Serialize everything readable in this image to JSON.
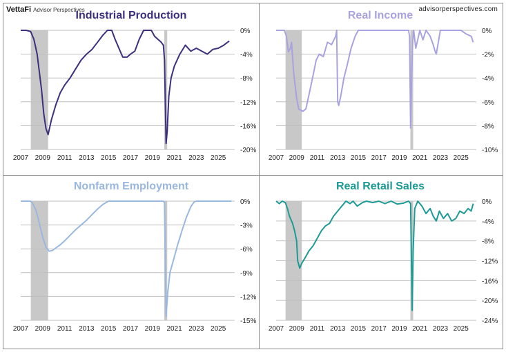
{
  "header": {
    "brand": "VettaFi",
    "brand_sub": "Advisor Perspectives",
    "site": "advisorperspectives.com"
  },
  "colors": {
    "grid": "#bfbfbf",
    "recession": "#c8c8c8",
    "border": "#8c8c8c"
  },
  "chart_data": [
    {
      "type": "line",
      "title": "Industrial Production",
      "color": "#3b2f7e",
      "x_ticks": [
        "2007",
        "2009",
        "2011",
        "2013",
        "2015",
        "2017",
        "2019",
        "2021",
        "2023",
        "2025"
      ],
      "xlim": [
        2007,
        2026.5
      ],
      "ylim": [
        -20,
        0
      ],
      "y_ticks": [
        "0%",
        "-4%",
        "-8%",
        "-12%",
        "-16%",
        "-20%"
      ],
      "recessions": [
        [
          2007.92,
          2009.5
        ],
        [
          2020.08,
          2020.35
        ]
      ],
      "series": [
        {
          "x": [
            2007.0,
            2007.5,
            2007.9,
            2008.2,
            2008.5,
            2008.7,
            2008.9,
            2009.1,
            2009.3,
            2009.5,
            2009.8,
            2010.2,
            2010.6,
            2011.0,
            2011.5,
            2012.0,
            2012.5,
            2013.0,
            2013.5,
            2014.0,
            2014.5,
            2014.9,
            2015.3,
            2015.6,
            2015.9,
            2016.3,
            2016.7,
            2017.0,
            2017.4,
            2017.8,
            2018.2,
            2018.6,
            2018.9,
            2019.2,
            2019.5,
            2019.8,
            2020.0,
            2020.1,
            2020.25,
            2020.35,
            2020.5,
            2020.7,
            2021.0,
            2021.5,
            2022.0,
            2022.5,
            2023.0,
            2023.5,
            2024.0,
            2024.5,
            2025.0,
            2025.5,
            2026.0
          ],
          "y": [
            0,
            0,
            -0.2,
            -1.5,
            -4,
            -7,
            -10,
            -14,
            -16.5,
            -17.5,
            -15,
            -12.5,
            -10.5,
            -9.2,
            -8,
            -6.5,
            -5,
            -4,
            -3.2,
            -2,
            -0.8,
            0,
            0,
            -1.5,
            -2.8,
            -4.5,
            -4.5,
            -4,
            -3.5,
            -1.5,
            0,
            0,
            0,
            -1,
            -1.5,
            -2,
            -2.5,
            -5,
            -19,
            -17,
            -11,
            -8,
            -6,
            -4,
            -2.5,
            -3.5,
            -3,
            -3.5,
            -4,
            -3.2,
            -3,
            -2.5,
            -1.8
          ]
        }
      ]
    },
    {
      "type": "line",
      "title": "Real Income",
      "color": "#a9a2e0",
      "x_ticks": [
        "2007",
        "2009",
        "2011",
        "2013",
        "2015",
        "2017",
        "2019",
        "2021",
        "2023",
        "2025"
      ],
      "xlim": [
        2007,
        2026.5
      ],
      "ylim": [
        -10,
        0
      ],
      "y_ticks": [
        "0%",
        "-2%",
        "-4%",
        "-6%",
        "-8%",
        "-10%"
      ],
      "recessions": [
        [
          2007.92,
          2009.5
        ],
        [
          2020.08,
          2020.35
        ]
      ],
      "series": [
        {
          "x": [
            2007.0,
            2007.8,
            2008.0,
            2008.2,
            2008.4,
            2008.5,
            2008.7,
            2008.9,
            2009.0,
            2009.2,
            2009.6,
            2009.9,
            2010.3,
            2010.6,
            2010.9,
            2011.2,
            2011.6,
            2012.0,
            2012.4,
            2012.8,
            2012.9,
            2013.0,
            2013.1,
            2013.3,
            2013.6,
            2013.9,
            2014.3,
            2014.7,
            2015.0,
            2016.0,
            2017.0,
            2018.0,
            2019.0,
            2019.9,
            2020.0,
            2020.1,
            2020.2,
            2020.3,
            2020.4,
            2020.6,
            2021.0,
            2021.3,
            2021.6,
            2022.0,
            2022.3,
            2022.5,
            2022.6,
            2023.0,
            2024.0,
            2025.0,
            2025.5,
            2026.0,
            2026.2
          ],
          "y": [
            0,
            0,
            -0.5,
            -1.8,
            -1.5,
            -1.0,
            -3.5,
            -5.0,
            -5.7,
            -6.6,
            -6.8,
            -6.6,
            -5.0,
            -3.8,
            -2.5,
            -2.0,
            -2.2,
            -1.0,
            -1.2,
            -0.5,
            0,
            -6.0,
            -6.3,
            -5.5,
            -4.0,
            -3.0,
            -1.5,
            -0.5,
            0,
            0,
            0,
            0,
            0,
            0,
            -0.5,
            -8.2,
            -4.0,
            -1.0,
            0,
            -1.5,
            0,
            -0.8,
            0,
            -0.5,
            -1.2,
            -1.8,
            -2.0,
            0,
            0,
            0,
            -0.3,
            -0.5,
            -1.0
          ]
        }
      ]
    },
    {
      "type": "line",
      "title": "Nonfarm Employment",
      "color": "#9ab8df",
      "x_ticks": [
        "2007",
        "2009",
        "2011",
        "2013",
        "2015",
        "2017",
        "2019",
        "2021",
        "2023",
        "2025"
      ],
      "xlim": [
        2007,
        2026.5
      ],
      "ylim": [
        -15,
        0
      ],
      "y_ticks": [
        "0%",
        "-3%",
        "-6%",
        "-9%",
        "-12%",
        "-15%"
      ],
      "recessions": [
        [
          2007.92,
          2009.5
        ],
        [
          2020.08,
          2020.35
        ]
      ],
      "series": [
        {
          "x": [
            2007.0,
            2007.9,
            2008.1,
            2008.4,
            2008.7,
            2009.0,
            2009.3,
            2009.6,
            2009.9,
            2010.2,
            2010.6,
            2011.0,
            2011.5,
            2012.0,
            2012.5,
            2013.0,
            2013.5,
            2014.0,
            2014.5,
            2015.0,
            2016.0,
            2017.0,
            2018.0,
            2019.0,
            2020.0,
            2020.1,
            2020.25,
            2020.4,
            2020.6,
            2020.9,
            2021.3,
            2021.7,
            2022.1,
            2022.5,
            2022.8,
            2023.0,
            2024.0,
            2025.0,
            2026.2
          ],
          "y": [
            0,
            0,
            -0.3,
            -1.2,
            -2.8,
            -4.5,
            -5.8,
            -6.3,
            -6.2,
            -5.9,
            -5.5,
            -5.0,
            -4.3,
            -3.6,
            -3.0,
            -2.4,
            -1.7,
            -1.0,
            -0.4,
            0,
            0,
            0,
            0,
            0,
            0,
            -0.2,
            -14.5,
            -11.5,
            -9.0,
            -7.5,
            -5.5,
            -3.7,
            -2.0,
            -0.7,
            -0.1,
            0,
            0,
            0,
            0
          ]
        }
      ]
    },
    {
      "type": "line",
      "title": "Real Retail Sales",
      "color": "#1d9a95",
      "x_ticks": [
        "2007",
        "2009",
        "2011",
        "2013",
        "2015",
        "2017",
        "2019",
        "2021",
        "2023",
        "2025"
      ],
      "xlim": [
        2007,
        2026.5
      ],
      "ylim": [
        -24,
        0
      ],
      "y_ticks": [
        "0%",
        "-4%",
        "-8%",
        "-12%",
        "-16%",
        "-20%",
        "-24%"
      ],
      "recessions": [
        [
          2007.92,
          2009.5
        ],
        [
          2020.08,
          2020.35
        ]
      ],
      "series": [
        {
          "x": [
            2007.0,
            2007.3,
            2007.6,
            2007.9,
            2008.1,
            2008.3,
            2008.6,
            2008.8,
            2009.0,
            2009.1,
            2009.3,
            2009.5,
            2009.8,
            2010.2,
            2010.6,
            2011.0,
            2011.4,
            2011.8,
            2012.2,
            2012.6,
            2013.0,
            2013.4,
            2013.8,
            2014.2,
            2014.5,
            2014.9,
            2015.4,
            2015.8,
            2016.4,
            2017.0,
            2017.6,
            2018.2,
            2018.8,
            2019.4,
            2019.9,
            2020.1,
            2020.25,
            2020.35,
            2020.5,
            2020.8,
            2021.2,
            2021.6,
            2022.0,
            2022.3,
            2022.6,
            2022.9,
            2023.3,
            2023.7,
            2024.1,
            2024.5,
            2024.9,
            2025.3,
            2025.7,
            2026.0,
            2026.2
          ],
          "y": [
            0,
            -0.5,
            0,
            -0.3,
            -1.5,
            -3.0,
            -4.5,
            -6.0,
            -8.0,
            -12.0,
            -13.5,
            -12.5,
            -11.5,
            -10.0,
            -9.0,
            -7.5,
            -6.0,
            -5.0,
            -4.5,
            -3.0,
            -2.0,
            -1.0,
            0,
            -0.5,
            0,
            -1.0,
            -0.3,
            0,
            -0.3,
            0,
            -0.5,
            0,
            -0.6,
            -0.4,
            0,
            -0.5,
            -22.0,
            -10.0,
            -1.5,
            0,
            -1.0,
            -2.5,
            -1.5,
            -3.0,
            -4.0,
            -2.0,
            -3.5,
            -2.5,
            -4.0,
            -3.5,
            -2.0,
            -2.5,
            -1.5,
            -2.0,
            -0.5
          ]
        }
      ]
    }
  ]
}
